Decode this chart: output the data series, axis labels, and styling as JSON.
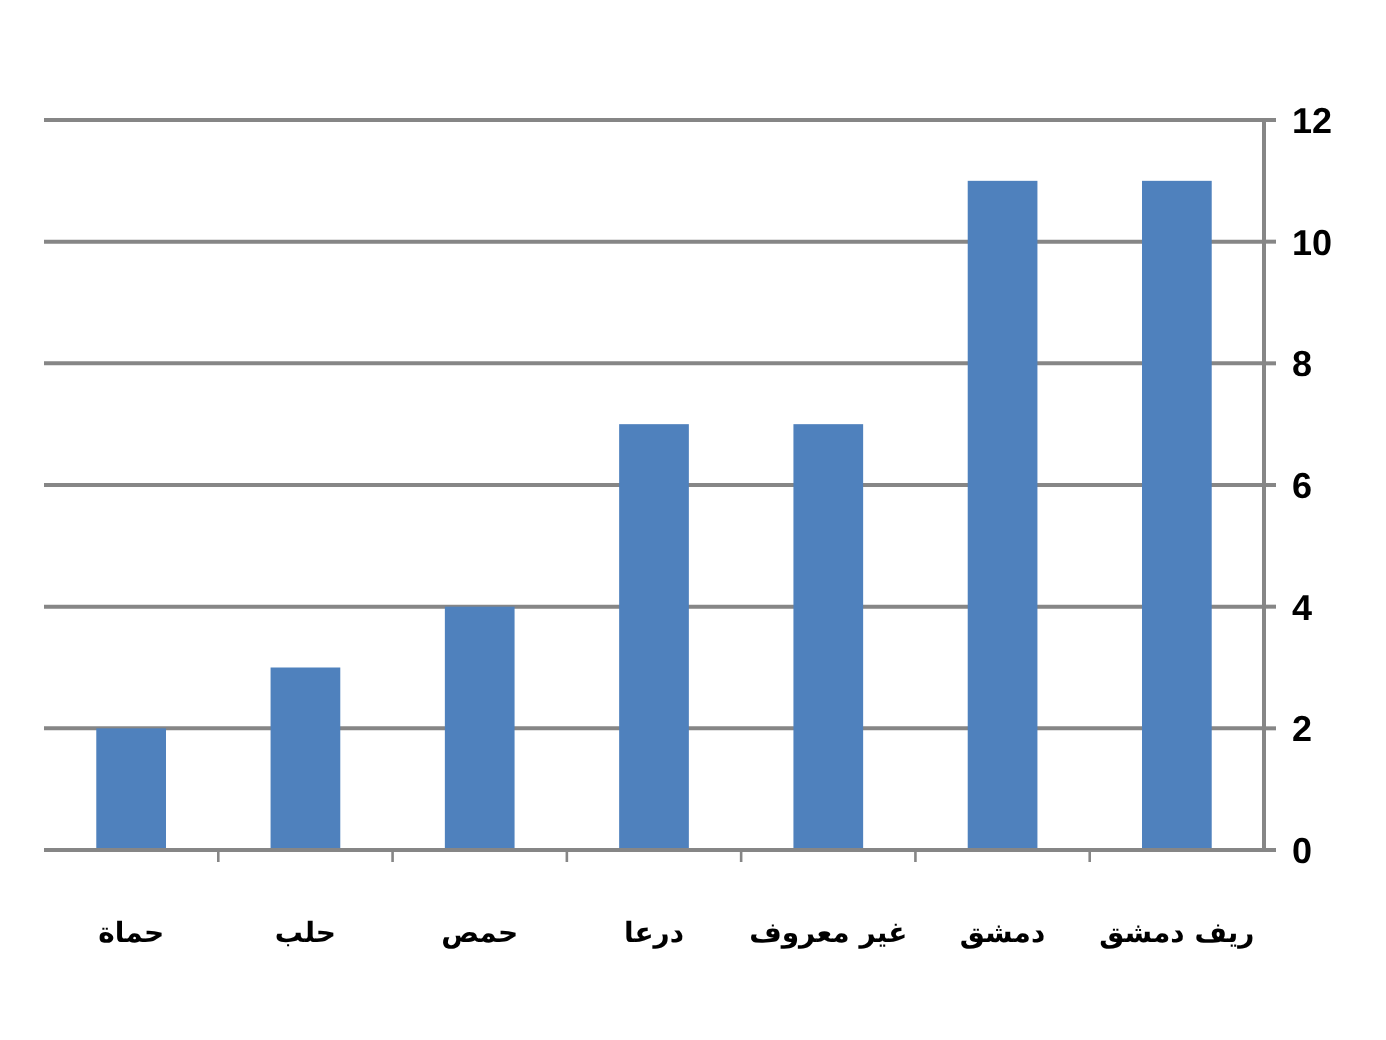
{
  "chart_data": {
    "type": "bar",
    "categories": [
      "حماة",
      "حلب",
      "حمص",
      "درعا",
      "غير معروف",
      "دمشق",
      "ريف دمشق"
    ],
    "values": [
      2,
      3,
      4,
      7,
      7,
      11,
      11
    ],
    "color": "#4f81bd",
    "ylim": [
      0,
      12
    ],
    "yticks": [
      0,
      2,
      4,
      6,
      8,
      10,
      12
    ],
    "grid": "y"
  }
}
